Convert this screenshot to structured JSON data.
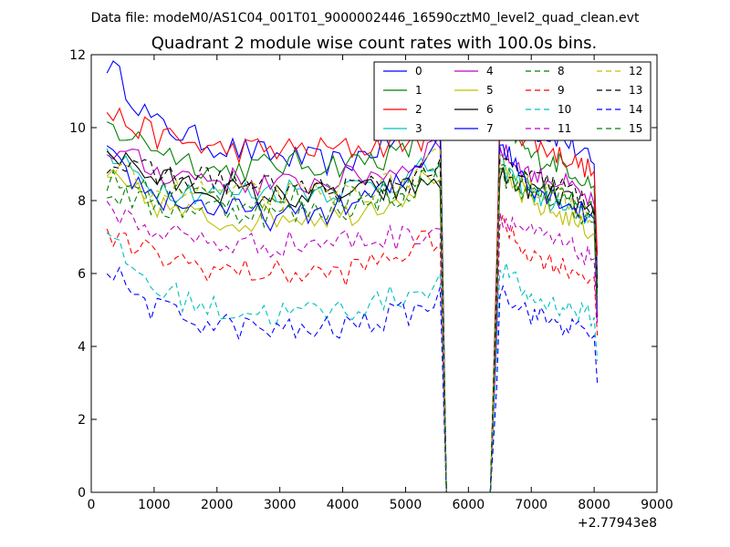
{
  "figure": {
    "suptitle": "Data file: modeM0/AS1C04_001T01_9000002446_16590cztM0_level2_quad_clean.evt",
    "offset_text": "+2.77943e8"
  },
  "chart_data": {
    "type": "line",
    "title": "Quadrant 2 module wise count rates with 100.0s bins.",
    "xlabel": "",
    "ylabel": "",
    "xlim": [
      0,
      9000
    ],
    "ylim": [
      0,
      12
    ],
    "xticks": [
      0,
      1000,
      2000,
      3000,
      4000,
      5000,
      6000,
      7000,
      8000,
      9000
    ],
    "yticks": [
      0,
      2,
      4,
      6,
      8,
      10,
      12
    ],
    "x_offset": 277943000,
    "bin_seconds": 100,
    "gap": {
      "drop_start": 5550,
      "zero_start": 5650,
      "zero_end": 6350,
      "rise_end": 6450
    },
    "legend_position": "top-right",
    "legend_columns": 4,
    "series": [
      {
        "name": "0",
        "color": "#0000ff",
        "dash": "solid",
        "seg1": [
          [
            250,
            11.8
          ],
          [
            1000,
            10.1
          ],
          [
            2000,
            9.5
          ],
          [
            3000,
            9.2
          ],
          [
            4000,
            9.0
          ],
          [
            5000,
            9.8
          ],
          [
            5500,
            10.6
          ]
        ],
        "seg2": [
          [
            6500,
            10.8
          ],
          [
            7000,
            9.9
          ],
          [
            7500,
            9.7
          ],
          [
            8000,
            9.0
          ],
          [
            8050,
            5.9
          ]
        ]
      },
      {
        "name": "1",
        "color": "#008000",
        "dash": "solid",
        "seg1": [
          [
            250,
            10.0
          ],
          [
            1000,
            9.5
          ],
          [
            2000,
            8.8
          ],
          [
            3000,
            9.0
          ],
          [
            4000,
            9.0
          ],
          [
            5000,
            9.3
          ],
          [
            5500,
            10.4
          ]
        ],
        "seg2": [
          [
            6500,
            10.3
          ],
          [
            7000,
            9.2
          ],
          [
            7500,
            9.0
          ],
          [
            8000,
            8.4
          ],
          [
            8050,
            5.2
          ]
        ]
      },
      {
        "name": "2",
        "color": "#ff0000",
        "dash": "solid",
        "seg1": [
          [
            250,
            10.4
          ],
          [
            1000,
            9.8
          ],
          [
            2000,
            9.4
          ],
          [
            3000,
            9.4
          ],
          [
            4000,
            9.4
          ],
          [
            5000,
            9.6
          ],
          [
            5500,
            9.8
          ]
        ],
        "seg2": [
          [
            6500,
            10.2
          ],
          [
            7000,
            9.6
          ],
          [
            7500,
            9.2
          ],
          [
            8000,
            8.8
          ],
          [
            8050,
            6.5
          ]
        ]
      },
      {
        "name": "3",
        "color": "#00bfbf",
        "dash": "solid",
        "seg1": [
          [
            250,
            9.2
          ],
          [
            1000,
            8.4
          ],
          [
            2000,
            8.2
          ],
          [
            3000,
            8.3
          ],
          [
            4000,
            8.3
          ],
          [
            5000,
            8.6
          ],
          [
            5500,
            9.0
          ]
        ],
        "seg2": [
          [
            6500,
            9.0
          ],
          [
            7000,
            8.2
          ],
          [
            7500,
            7.8
          ],
          [
            8000,
            7.5
          ],
          [
            8050,
            5.6
          ]
        ]
      },
      {
        "name": "4",
        "color": "#bf00bf",
        "dash": "solid",
        "seg1": [
          [
            250,
            9.5
          ],
          [
            1000,
            8.8
          ],
          [
            2000,
            8.6
          ],
          [
            3000,
            8.4
          ],
          [
            4000,
            8.6
          ],
          [
            5000,
            8.9
          ],
          [
            5500,
            9.6
          ]
        ],
        "seg2": [
          [
            6500,
            9.4
          ],
          [
            7000,
            8.7
          ],
          [
            7500,
            8.5
          ],
          [
            8000,
            7.9
          ],
          [
            8050,
            5.8
          ]
        ]
      },
      {
        "name": "5",
        "color": "#bfbf00",
        "dash": "solid",
        "seg1": [
          [
            250,
            8.6
          ],
          [
            1000,
            7.9
          ],
          [
            2000,
            7.4
          ],
          [
            3000,
            7.6
          ],
          [
            4000,
            7.6
          ],
          [
            5000,
            8.2
          ],
          [
            5500,
            8.8
          ]
        ],
        "seg2": [
          [
            6500,
            8.7
          ],
          [
            7000,
            7.9
          ],
          [
            7500,
            7.6
          ],
          [
            8000,
            7.1
          ],
          [
            8050,
            5.1
          ]
        ]
      },
      {
        "name": "6",
        "color": "#000000",
        "dash": "solid",
        "seg1": [
          [
            250,
            9.4
          ],
          [
            1000,
            8.6
          ],
          [
            2000,
            8.3
          ],
          [
            3000,
            8.1
          ],
          [
            4000,
            8.2
          ],
          [
            5000,
            8.3
          ],
          [
            5500,
            8.6
          ]
        ],
        "seg2": [
          [
            6500,
            8.7
          ],
          [
            7000,
            8.3
          ],
          [
            7500,
            8.1
          ],
          [
            8000,
            7.6
          ],
          [
            8050,
            5.5
          ]
        ]
      },
      {
        "name": "7",
        "color": "#0000ff",
        "dash": "solid",
        "seg1": [
          [
            250,
            9.2
          ],
          [
            1000,
            8.1
          ],
          [
            2000,
            7.8
          ],
          [
            3000,
            7.5
          ],
          [
            4000,
            7.8
          ],
          [
            5000,
            8.5
          ],
          [
            5500,
            9.8
          ]
        ],
        "seg2": [
          [
            6500,
            9.6
          ],
          [
            7000,
            8.4
          ],
          [
            7500,
            8.0
          ],
          [
            8000,
            7.5
          ],
          [
            8050,
            4.8
          ]
        ]
      },
      {
        "name": "8",
        "color": "#008000",
        "dash": "dashed",
        "seg1": [
          [
            250,
            8.3
          ],
          [
            1000,
            7.8
          ],
          [
            2000,
            7.8
          ],
          [
            3000,
            7.6
          ],
          [
            4000,
            7.8
          ],
          [
            5000,
            8.2
          ],
          [
            5500,
            8.8
          ]
        ],
        "seg2": [
          [
            6500,
            8.7
          ],
          [
            7000,
            8.2
          ],
          [
            7500,
            8.0
          ],
          [
            8000,
            7.4
          ],
          [
            8050,
            5.3
          ]
        ]
      },
      {
        "name": "9",
        "color": "#ff0000",
        "dash": "dashed",
        "seg1": [
          [
            250,
            7.0
          ],
          [
            1000,
            6.5
          ],
          [
            2000,
            6.1
          ],
          [
            3000,
            6.0
          ],
          [
            4000,
            6.0
          ],
          [
            5000,
            6.6
          ],
          [
            5500,
            7.0
          ]
        ],
        "seg2": [
          [
            6500,
            7.4
          ],
          [
            7000,
            6.5
          ],
          [
            7500,
            6.2
          ],
          [
            8000,
            5.9
          ],
          [
            8050,
            4.3
          ]
        ]
      },
      {
        "name": "10",
        "color": "#00bfbf",
        "dash": "dashed",
        "seg1": [
          [
            250,
            6.9
          ],
          [
            1000,
            5.6
          ],
          [
            2000,
            5.0
          ],
          [
            3000,
            4.9
          ],
          [
            4000,
            5.0
          ],
          [
            5000,
            5.4
          ],
          [
            5500,
            5.8
          ]
        ],
        "seg2": [
          [
            6500,
            6.2
          ],
          [
            7000,
            5.3
          ],
          [
            7500,
            5.1
          ],
          [
            8000,
            4.8
          ],
          [
            8050,
            3.6
          ]
        ]
      },
      {
        "name": "11",
        "color": "#bf00bf",
        "dash": "dashed",
        "seg1": [
          [
            250,
            7.8
          ],
          [
            1000,
            7.2
          ],
          [
            2000,
            6.8
          ],
          [
            3000,
            6.8
          ],
          [
            4000,
            6.9
          ],
          [
            5000,
            7.0
          ],
          [
            5500,
            7.3
          ]
        ],
        "seg2": [
          [
            6500,
            7.6
          ],
          [
            7000,
            7.1
          ],
          [
            7500,
            6.8
          ],
          [
            8000,
            6.4
          ],
          [
            8050,
            4.6
          ]
        ]
      },
      {
        "name": "12",
        "color": "#bfbf00",
        "dash": "dashed",
        "seg1": [
          [
            250,
            8.8
          ],
          [
            1000,
            8.3
          ],
          [
            2000,
            8.2
          ],
          [
            3000,
            8.1
          ],
          [
            4000,
            8.2
          ],
          [
            5000,
            8.5
          ],
          [
            5500,
            9.1
          ]
        ],
        "seg2": [
          [
            6500,
            9.0
          ],
          [
            7000,
            8.4
          ],
          [
            7500,
            8.1
          ],
          [
            8000,
            7.6
          ],
          [
            8050,
            5.4
          ]
        ]
      },
      {
        "name": "13",
        "color": "#000000",
        "dash": "dashed",
        "seg1": [
          [
            250,
            9.0
          ],
          [
            1000,
            8.7
          ],
          [
            2000,
            8.6
          ],
          [
            3000,
            8.3
          ],
          [
            4000,
            8.3
          ],
          [
            5000,
            8.5
          ],
          [
            5500,
            9.0
          ]
        ],
        "seg2": [
          [
            6500,
            9.1
          ],
          [
            7000,
            8.6
          ],
          [
            7500,
            8.4
          ],
          [
            8000,
            7.8
          ],
          [
            8050,
            5.6
          ]
        ]
      },
      {
        "name": "14",
        "color": "#0000ff",
        "dash": "dashed",
        "seg1": [
          [
            250,
            6.1
          ],
          [
            1000,
            5.0
          ],
          [
            2000,
            4.6
          ],
          [
            3000,
            4.4
          ],
          [
            4000,
            4.5
          ],
          [
            5000,
            4.9
          ],
          [
            5500,
            5.3
          ]
        ],
        "seg2": [
          [
            6500,
            5.6
          ],
          [
            7000,
            4.9
          ],
          [
            7500,
            4.6
          ],
          [
            8000,
            4.3
          ],
          [
            8050,
            3.0
          ]
        ]
      },
      {
        "name": "15",
        "color": "#008000",
        "dash": "dashed",
        "seg1": [
          [
            250,
            8.5
          ],
          [
            1000,
            8.3
          ],
          [
            2000,
            8.1
          ],
          [
            3000,
            8.0
          ],
          [
            4000,
            8.1
          ],
          [
            5000,
            8.3
          ],
          [
            5500,
            8.8
          ]
        ],
        "seg2": [
          [
            6500,
            8.9
          ],
          [
            7000,
            8.4
          ],
          [
            7500,
            8.2
          ],
          [
            8000,
            7.7
          ],
          [
            8050,
            5.4
          ]
        ]
      }
    ]
  }
}
